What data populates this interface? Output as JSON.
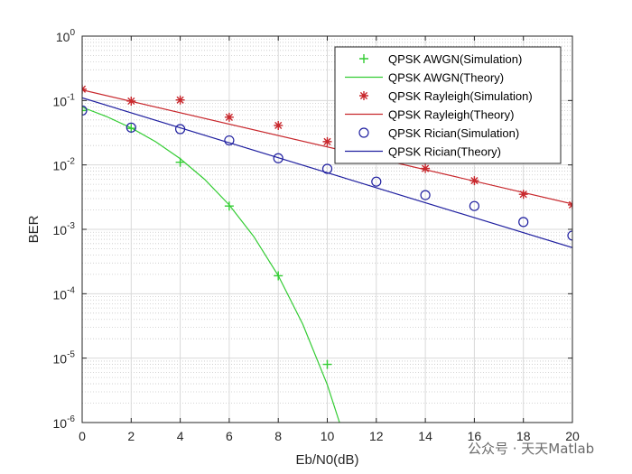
{
  "chart_data": {
    "type": "line",
    "xlabel": "Eb/N0(dB)",
    "ylabel": "BER",
    "y_scale": "log",
    "xlim": [
      0,
      20
    ],
    "ylim_exponents": [
      -6,
      0
    ],
    "x_ticks": [
      "0",
      "2",
      "4",
      "6",
      "8",
      "10",
      "12",
      "14",
      "16",
      "18",
      "20"
    ],
    "y_tick_base": "10",
    "y_tick_exponents": [
      "-6",
      "-5",
      "-4",
      "-3",
      "-2",
      "-1",
      "0"
    ],
    "grid": true,
    "minor_grid": true,
    "legend_position": "top-right",
    "series": [
      {
        "name": "QPSK AWGN(Simulation)",
        "style": "marker",
        "marker": "plus",
        "color": "#33cc33",
        "x": [
          0,
          2,
          4,
          6,
          8,
          10
        ],
        "y": [
          0.07,
          0.037,
          0.011,
          0.0023,
          0.00019,
          8e-06
        ]
      },
      {
        "name": "QPSK AWGN(Theory)",
        "style": "line",
        "color": "#33cc33",
        "x": [
          0,
          1,
          2,
          3,
          4,
          5,
          6,
          7,
          8,
          9,
          10,
          10.5
        ],
        "y": [
          0.0786,
          0.0563,
          0.0375,
          0.0229,
          0.0125,
          0.00595,
          0.00239,
          0.000773,
          0.000191,
          3.36e-05,
          3.87e-06,
          1e-06
        ]
      },
      {
        "name": "QPSK Rayleigh(Simulation)",
        "style": "marker",
        "marker": "asterisk",
        "color": "#c8282d",
        "x": [
          0,
          2,
          4,
          6,
          8,
          10,
          12,
          14,
          16,
          18,
          20
        ],
        "y": [
          0.15,
          0.098,
          0.102,
          0.055,
          0.041,
          0.023,
          0.0165,
          0.0088,
          0.0057,
          0.0035,
          0.0024
        ]
      },
      {
        "name": "QPSK Rayleigh(Theory)",
        "style": "line",
        "color": "#c8282d",
        "x": [
          0,
          20
        ],
        "y": [
          0.146,
          0.00248
        ]
      },
      {
        "name": "QPSK Rician(Simulation)",
        "style": "marker",
        "marker": "circle",
        "color": "#2020a0",
        "x": [
          0,
          2,
          4,
          6,
          8,
          10,
          12,
          14,
          16,
          18,
          20
        ],
        "y": [
          0.07,
          0.038,
          0.036,
          0.024,
          0.0127,
          0.0087,
          0.0055,
          0.0034,
          0.0023,
          0.0013,
          0.0008
        ]
      },
      {
        "name": "QPSK Rician(Theory)",
        "style": "line",
        "color": "#2020a0",
        "x": [
          0,
          20
        ],
        "y": [
          0.11,
          0.00052
        ]
      }
    ]
  },
  "watermark": {
    "text": "公众号 · 天天Matlab"
  }
}
